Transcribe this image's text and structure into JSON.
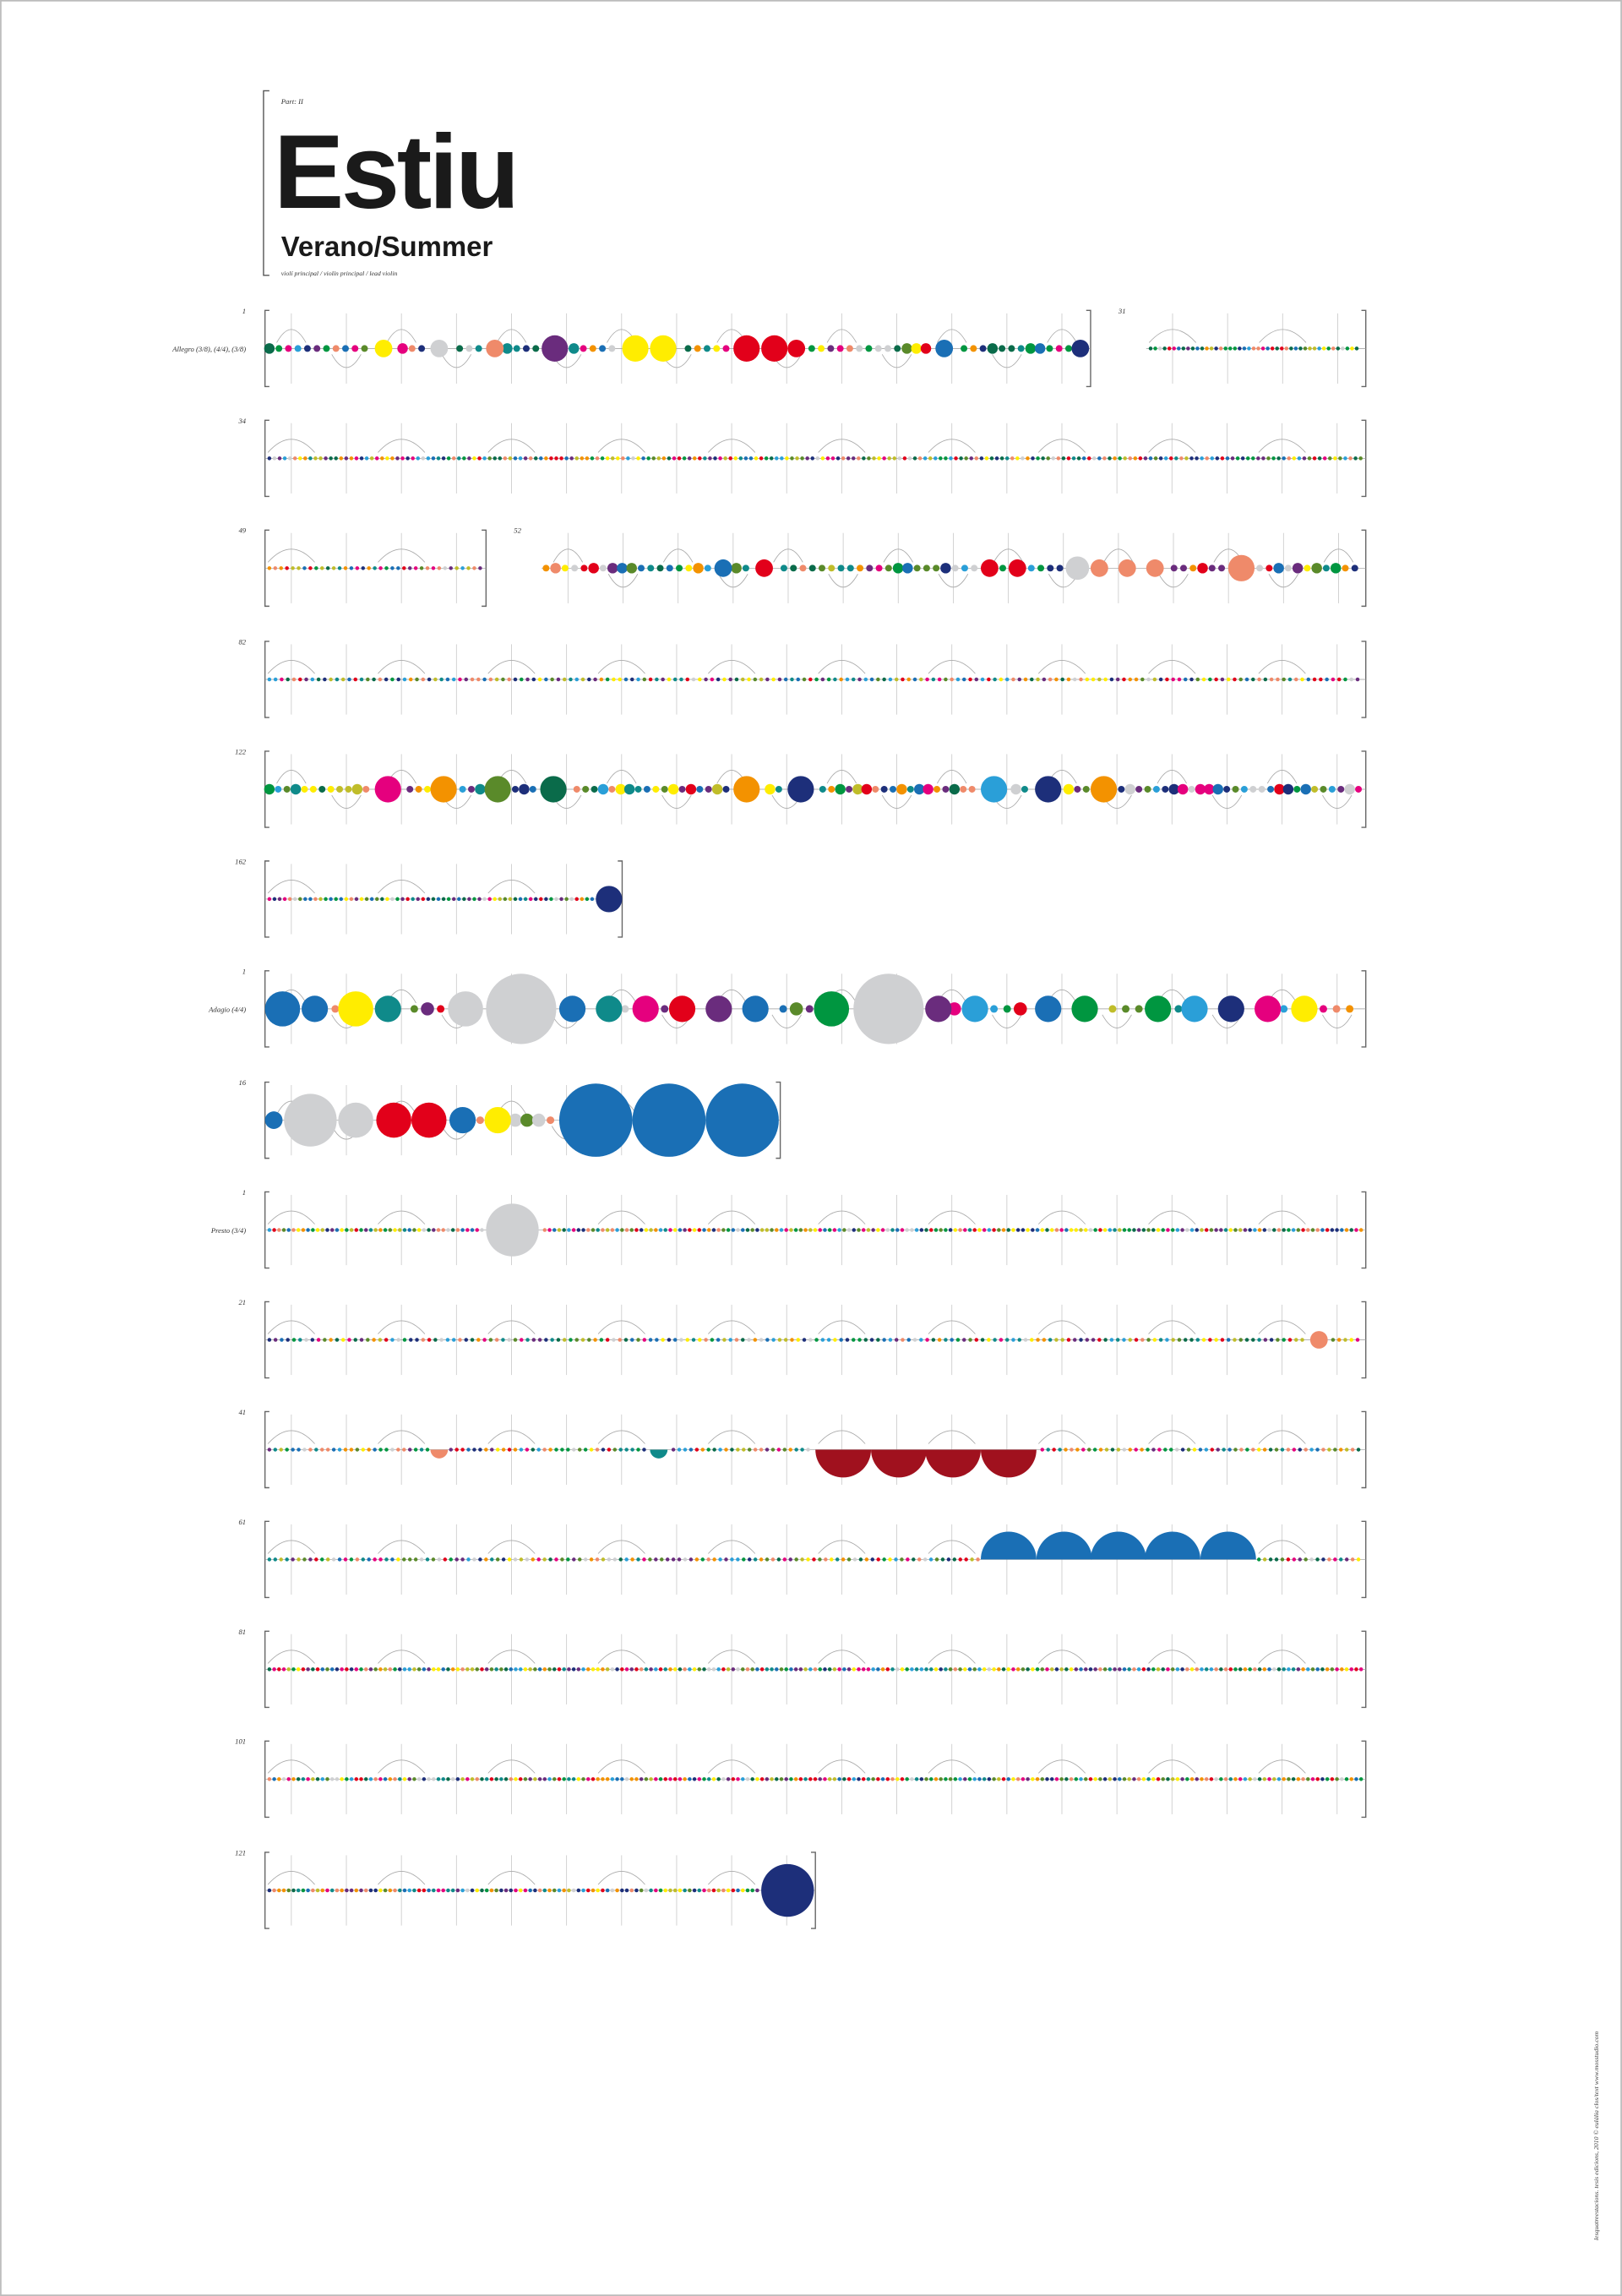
{
  "header": {
    "part": "Part: II",
    "title": "Estiu",
    "subtitle": "Verano/Summer",
    "instruments": "violí principal / violín principal / lead violin"
  },
  "staves": [
    {
      "measure": "1",
      "tempo": "Allegro (3/8), (4/4), (3/8)"
    },
    {
      "measure": "31"
    },
    {
      "measure": "34"
    },
    {
      "measure": "49"
    },
    {
      "measure": "52"
    },
    {
      "measure": "82"
    },
    {
      "measure": "122"
    },
    {
      "measure": "162"
    },
    {
      "measure": "1",
      "tempo": "Adagio (4/4)"
    },
    {
      "measure": "16"
    },
    {
      "measure": "1",
      "tempo": "Presto (3/4)"
    },
    {
      "measure": "21"
    },
    {
      "measure": "41"
    },
    {
      "measure": "61"
    },
    {
      "measure": "81"
    },
    {
      "measure": "101"
    },
    {
      "measure": "121"
    }
  ],
  "credits": "lesquatreestacions. tesis edicions, 2010   © eulàlia clos/text   www.mosstudio.com"
}
